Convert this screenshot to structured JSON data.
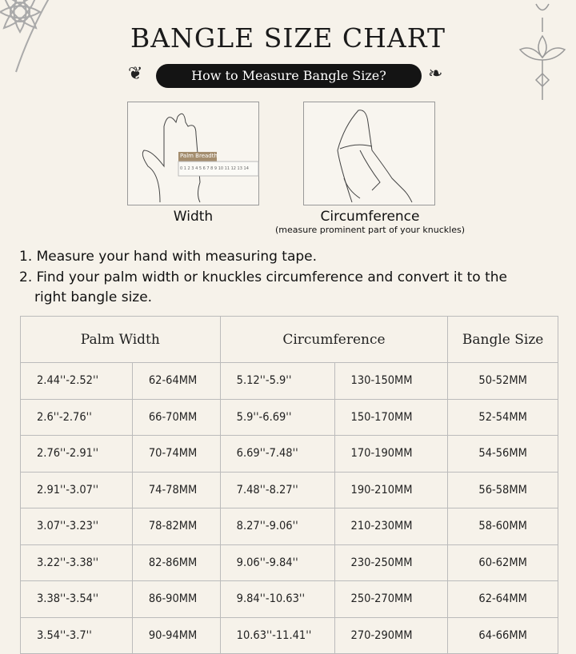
{
  "title": "BANGLE SIZE CHART",
  "subtitle": "How to Measure Bangle Size?",
  "figures": [
    {
      "caption": "Width",
      "label": "Palm Breadth",
      "ruler": "0 1 2 3 4 5 6 7 8 9 10 11 12 13 14"
    },
    {
      "caption": "Circumference",
      "note": "(measure prominent part of your knuckles)"
    }
  ],
  "instructions": [
    "1. Measure your hand with measuring tape.",
    "2. Find your palm width or knuckles circumference and convert it to the right bangle size."
  ],
  "table": {
    "headers": [
      "Palm Width",
      "Circumference",
      "Bangle Size"
    ],
    "rows": [
      [
        "2.44''-2.52''",
        "62-64MM",
        "5.12''-5.9''",
        "130-150MM",
        "50-52MM"
      ],
      [
        "2.6''-2.76''",
        "66-70MM",
        "5.9''-6.69''",
        "150-170MM",
        "52-54MM"
      ],
      [
        "2.76''-2.91''",
        "70-74MM",
        "6.69''-7.48''",
        "170-190MM",
        "54-56MM"
      ],
      [
        "2.91''-3.07''",
        "74-78MM",
        "7.48''-8.27''",
        "190-210MM",
        "56-58MM"
      ],
      [
        "3.07''-3.23''",
        "78-82MM",
        "8.27''-9.06''",
        "210-230MM",
        "58-60MM"
      ],
      [
        "3.22''-3.38''",
        "82-86MM",
        "9.06''-9.84''",
        "230-250MM",
        "60-62MM"
      ],
      [
        "3.38''-3.54''",
        "86-90MM",
        "9.84''-10.63''",
        "250-270MM",
        "62-64MM"
      ],
      [
        "3.54''-3.7''",
        "90-94MM",
        "10.63''-11.41''",
        "270-290MM",
        "64-66MM"
      ]
    ]
  }
}
